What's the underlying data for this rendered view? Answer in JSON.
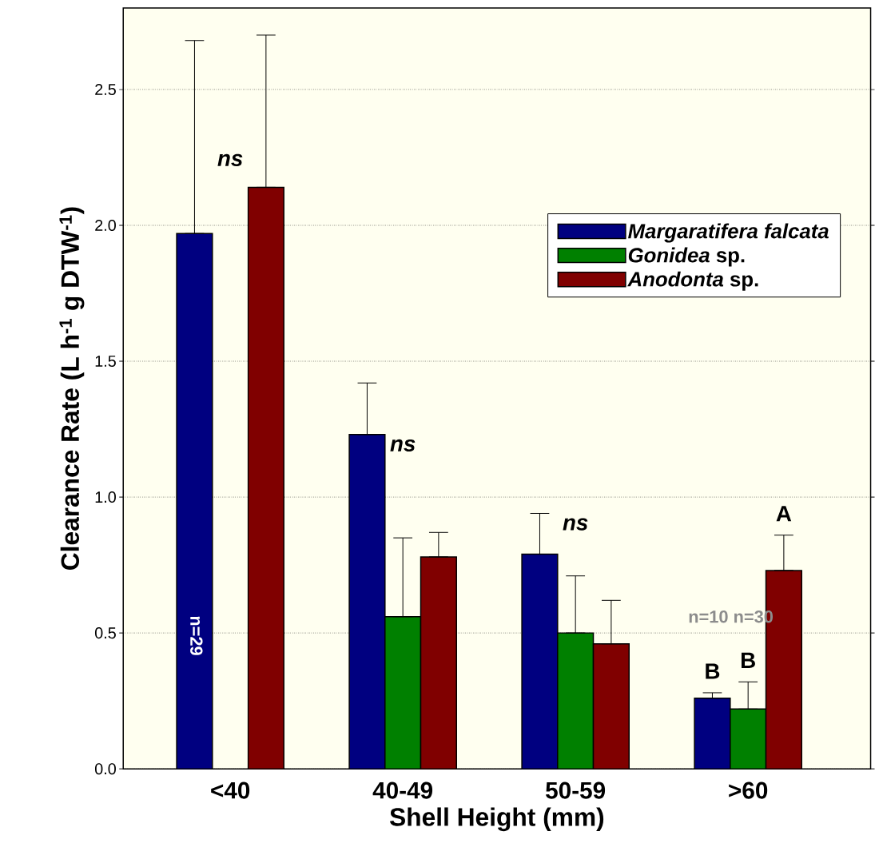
{
  "chart_data": {
    "type": "bar",
    "xlabel": "Shell Height (mm)",
    "ylabel": "Clearance Rate (L h$^{-1}$ g DTW$^{-1}$)",
    "categories": [
      "<40",
      "40-49",
      "50-59",
      ">60"
    ],
    "series": [
      {
        "name": "*Margaratifera falcata*",
        "color": "#000080",
        "values": [
          1.97,
          1.23,
          0.79,
          0.26
        ],
        "errors": [
          [
            1.97,
            2.68
          ],
          [
            1.23,
            1.42
          ],
          [
            0.79,
            0.94
          ],
          [
            0.26,
            0.28
          ]
        ],
        "value_labels": [
          null,
          null,
          null,
          "B"
        ]
      },
      {
        "name": "*Gonidea* sp.",
        "color": "#008000",
        "values": [
          null,
          0.56,
          0.5,
          0.22
        ],
        "errors": [
          null,
          [
            0.56,
            0.85
          ],
          [
            0.5,
            0.71
          ],
          [
            0.22,
            0.32
          ]
        ],
        "value_labels": [
          null,
          null,
          null,
          "B"
        ]
      },
      {
        "name": "*Anodonta* sp.",
        "color": "#800000",
        "values": [
          2.14,
          0.78,
          0.46,
          0.73
        ],
        "errors": [
          [
            2.14,
            2.7
          ],
          [
            0.78,
            0.87
          ],
          [
            0.46,
            0.62
          ],
          [
            0.73,
            0.86
          ]
        ],
        "value_labels": [
          null,
          null,
          null,
          "A"
        ]
      }
    ],
    "ylim": [
      0,
      2.8
    ],
    "yticks": [
      {
        "value": 0,
        "label": "0.0"
      },
      0.5,
      {
        "value": 1,
        "label": "1.0"
      },
      1.5,
      {
        "value": 2,
        "label": "2.0"
      },
      2.5
    ],
    "grid": "y",
    "legend": "top right",
    "annotations": [
      "*ns*",
      "*ns*",
      "*ns*",
      "n=29",
      "n=10 n=30"
    ]
  }
}
